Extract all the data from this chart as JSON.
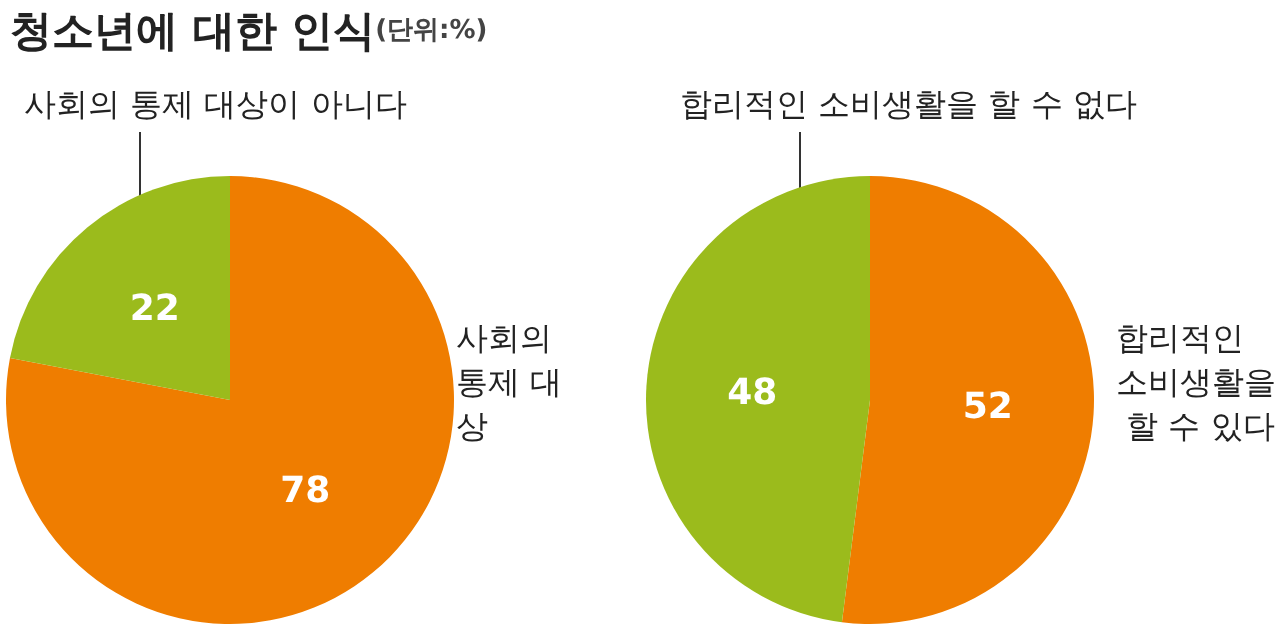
{
  "chart_data": [
    {
      "type": "pie",
      "title": "청소년에 대한 인식",
      "subtitle": "(단위:%)",
      "categories": [
        "사회의 통제 대상",
        "사회의 통제 대상이 아니다"
      ],
      "values": [
        78,
        22
      ],
      "colors": [
        "#ef7d00",
        "#9bbb1c"
      ],
      "data_labels": true,
      "legend": false
    },
    {
      "type": "pie",
      "categories": [
        "합리적인 소비생활을 할 수 있다",
        "합리적인 소비생활을 할 수 없다"
      ],
      "values": [
        52,
        48
      ],
      "colors": [
        "#ef7d00",
        "#9bbb1c"
      ],
      "data_labels": true,
      "legend": false
    }
  ]
}
